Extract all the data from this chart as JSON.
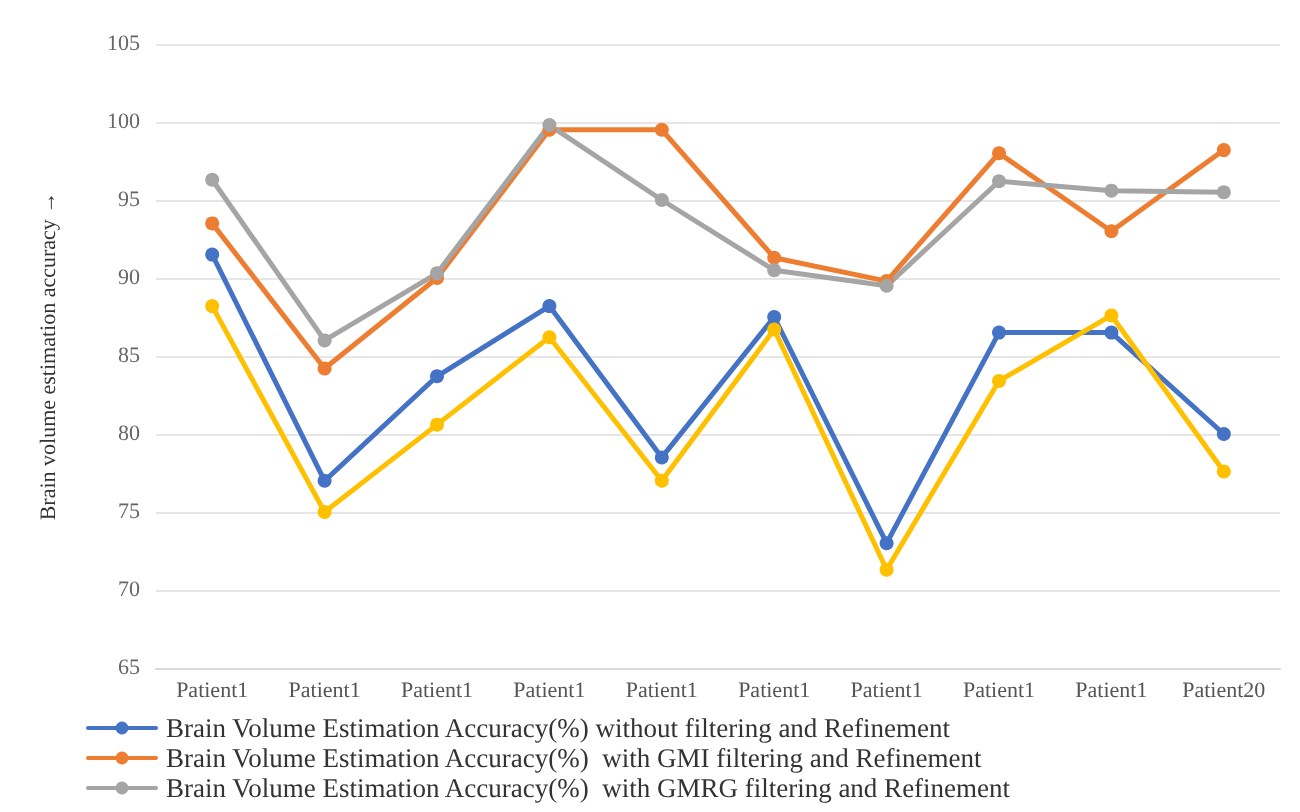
{
  "chart_data": {
    "type": "line",
    "ylabel": "Brain volume estimation accuracy →",
    "categories": [
      "Patient1",
      "Patient1",
      "Patient1",
      "Patient1",
      "Patient1",
      "Patient1",
      "Patient1",
      "Patient1",
      "Patient1",
      "Patient20"
    ],
    "series": [
      {
        "name": "Brain Volume Estimation Accuracy(%) without filtering and Refinement",
        "color": "#4472c4",
        "values": [
          91.5,
          77,
          83.7,
          88.2,
          78.5,
          87.5,
          73,
          86.5,
          86.5,
          80
        ]
      },
      {
        "name": "Brain Volume Estimation Accuracy(%)  with GMI filtering and Refinement",
        "color": "#ed7d31",
        "values": [
          93.5,
          84.2,
          90,
          99.5,
          99.5,
          91.3,
          89.8,
          98,
          93,
          98.2
        ]
      },
      {
        "name": "Brain Volume Estimation Accuracy(%)  with GMRG filtering and Refinement",
        "color": "#a5a5a5",
        "values": [
          96.3,
          86,
          90.3,
          99.8,
          95,
          90.5,
          89.5,
          96.2,
          95.6,
          95.5
        ]
      },
      {
        "color": "#ffc000",
        "values": [
          88.2,
          75,
          80.6,
          86.2,
          77,
          86.7,
          71.3,
          83.4,
          87.6,
          77.6
        ]
      }
    ],
    "ylim": [
      65,
      105
    ],
    "yticks": [
      65,
      70,
      75,
      80,
      85,
      90,
      95,
      100,
      105
    ],
    "grid": "y",
    "legend": "bottom",
    "marker": "circle",
    "line_style": "solid"
  }
}
